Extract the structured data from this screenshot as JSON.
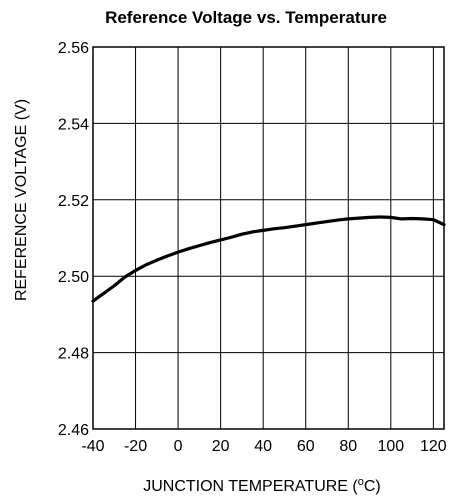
{
  "chart_data": {
    "type": "line",
    "title": "Reference Voltage vs. Temperature",
    "xlabel": "JUNCTION TEMPERATURE (",
    "xlabel_sup": "o",
    "xlabel_unit": "C)",
    "ylabel": "REFERENCE VOLTAGE (V)",
    "xlim": [
      -40,
      125
    ],
    "ylim": [
      2.46,
      2.56
    ],
    "grid": true,
    "x_ticks": [
      -40,
      -20,
      0,
      20,
      40,
      60,
      80,
      100,
      120
    ],
    "x_tick_labels": [
      "-40",
      "-20",
      "0",
      "20",
      "40",
      "60",
      "80",
      "100",
      "120"
    ],
    "y_ticks": [
      2.46,
      2.48,
      2.5,
      2.52,
      2.54,
      2.56
    ],
    "y_tick_labels": [
      "2.46",
      "2.48",
      "2.50",
      "2.52",
      "2.54",
      "2.56"
    ],
    "series": [
      {
        "x": [
          -40,
          -35,
          -30,
          -25,
          -20,
          -15,
          -10,
          -5,
          0,
          5,
          10,
          15,
          20,
          25,
          30,
          35,
          40,
          45,
          50,
          55,
          60,
          65,
          70,
          75,
          80,
          85,
          90,
          95,
          100,
          105,
          110,
          115,
          120,
          125
        ],
        "y": [
          2.4935,
          2.4955,
          2.4975,
          2.4998,
          2.5015,
          2.503,
          2.5042,
          2.5053,
          2.5063,
          2.5072,
          2.508,
          2.5088,
          2.5095,
          2.5102,
          2.511,
          2.5116,
          2.512,
          2.5124,
          2.5127,
          2.5131,
          2.5135,
          2.5139,
          2.5143,
          2.5147,
          2.515,
          2.5152,
          2.5154,
          2.5155,
          2.5154,
          2.515,
          2.5151,
          2.515,
          2.5148,
          2.5135
        ]
      }
    ]
  }
}
